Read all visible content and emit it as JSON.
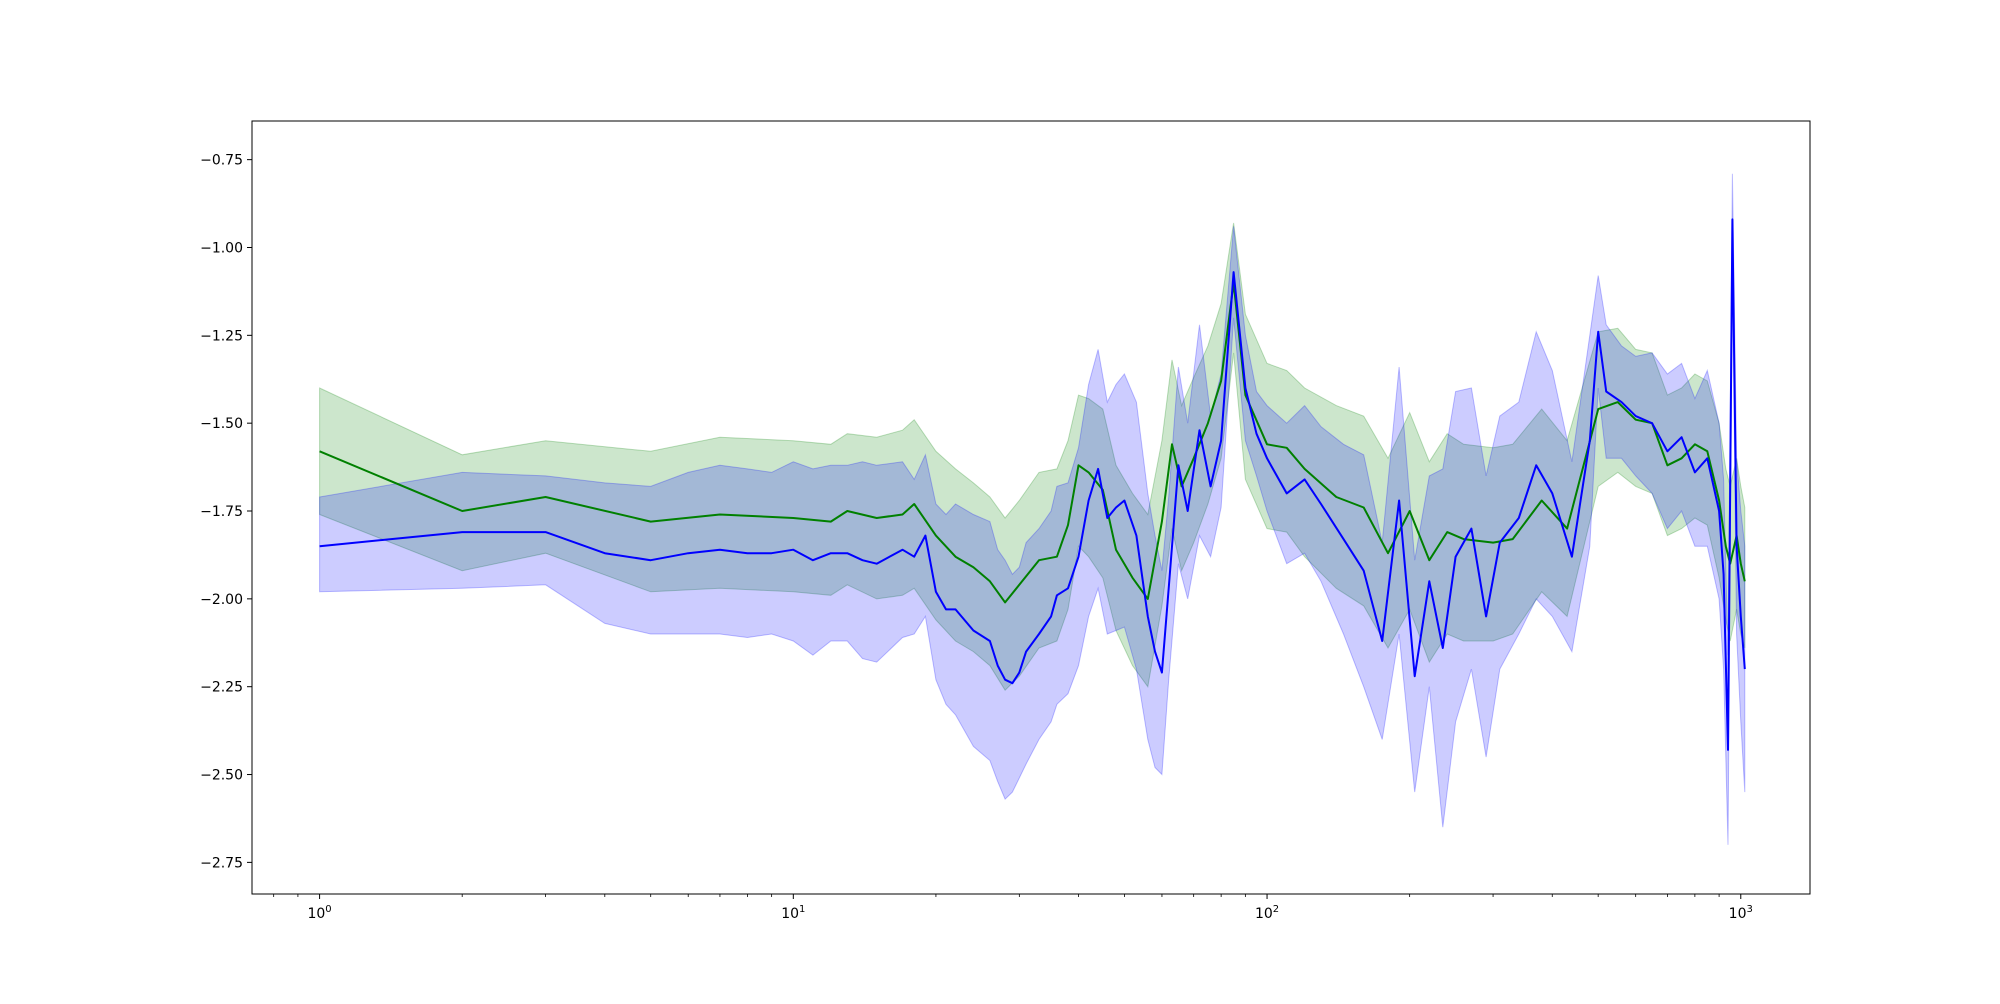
{
  "chart_data": {
    "type": "line",
    "title": "",
    "xlabel": "",
    "ylabel": "",
    "xscale": "log",
    "xlim": [
      0.72,
      1400
    ],
    "ylim": [
      -2.84,
      -0.64
    ],
    "grid": false,
    "x_tick_labels": [
      {
        "base": "10",
        "exp": "0",
        "value": 1
      },
      {
        "base": "10",
        "exp": "1",
        "value": 10
      },
      {
        "base": "10",
        "exp": "2",
        "value": 100
      },
      {
        "base": "10",
        "exp": "3",
        "value": 1000
      }
    ],
    "y_ticks": [
      -0.75,
      -1.0,
      -1.25,
      -1.5,
      -1.75,
      -2.0,
      -2.25,
      -2.5,
      -2.75
    ],
    "y_tick_labels": [
      "−0.75",
      "−1.00",
      "−1.25",
      "−1.50",
      "−1.75",
      "−2.00",
      "−2.25",
      "−2.50",
      "−2.75"
    ],
    "series": [
      {
        "color": "#008000",
        "band_color": "#008000",
        "band_opacity": 0.2,
        "x": [
          1,
          2,
          3,
          5,
          7,
          10,
          12,
          13,
          15,
          17,
          18,
          20,
          22,
          24,
          26,
          28,
          30,
          33,
          36,
          38,
          40,
          42,
          45,
          48,
          52,
          56,
          60,
          63,
          66,
          70,
          75,
          80,
          85,
          90,
          100,
          110,
          120,
          140,
          160,
          180,
          200,
          220,
          240,
          260,
          300,
          330,
          380,
          430,
          500,
          550,
          600,
          650,
          700,
          750,
          800,
          850,
          900,
          930,
          950,
          980,
          1000,
          1020
        ],
        "y": [
          -1.58,
          -1.75,
          -1.71,
          -1.78,
          -1.76,
          -1.77,
          -1.78,
          -1.75,
          -1.77,
          -1.76,
          -1.73,
          -1.82,
          -1.88,
          -1.91,
          -1.95,
          -2.01,
          -1.96,
          -1.89,
          -1.88,
          -1.79,
          -1.62,
          -1.64,
          -1.69,
          -1.86,
          -1.94,
          -2.0,
          -1.78,
          -1.56,
          -1.68,
          -1.6,
          -1.5,
          -1.38,
          -1.1,
          -1.42,
          -1.56,
          -1.57,
          -1.63,
          -1.71,
          -1.74,
          -1.87,
          -1.75,
          -1.89,
          -1.81,
          -1.83,
          -1.84,
          -1.83,
          -1.72,
          -1.8,
          -1.46,
          -1.44,
          -1.49,
          -1.5,
          -1.62,
          -1.6,
          -1.56,
          -1.58,
          -1.72,
          -1.85,
          -1.9,
          -1.82,
          -1.9,
          -1.95
        ],
        "lower": [
          -1.76,
          -1.92,
          -1.87,
          -1.98,
          -1.97,
          -1.98,
          -1.99,
          -1.96,
          -2.0,
          -1.99,
          -1.97,
          -2.06,
          -2.12,
          -2.15,
          -2.19,
          -2.26,
          -2.22,
          -2.14,
          -2.12,
          -2.03,
          -1.85,
          -1.88,
          -1.94,
          -2.09,
          -2.19,
          -2.25,
          -2.02,
          -1.8,
          -1.92,
          -1.84,
          -1.73,
          -1.6,
          -1.3,
          -1.66,
          -1.8,
          -1.81,
          -1.88,
          -1.97,
          -2.02,
          -2.14,
          -2.03,
          -2.18,
          -2.1,
          -2.12,
          -2.12,
          -2.1,
          -1.98,
          -2.05,
          -1.68,
          -1.64,
          -1.68,
          -1.7,
          -1.82,
          -1.8,
          -1.77,
          -1.79,
          -1.94,
          -2.06,
          -2.12,
          -2.03,
          -2.1,
          -2.14
        ],
        "upper": [
          -1.4,
          -1.59,
          -1.55,
          -1.58,
          -1.54,
          -1.55,
          -1.56,
          -1.53,
          -1.54,
          -1.52,
          -1.49,
          -1.58,
          -1.63,
          -1.67,
          -1.71,
          -1.77,
          -1.72,
          -1.64,
          -1.63,
          -1.55,
          -1.42,
          -1.43,
          -1.46,
          -1.62,
          -1.7,
          -1.76,
          -1.55,
          -1.32,
          -1.45,
          -1.37,
          -1.28,
          -1.16,
          -0.93,
          -1.19,
          -1.33,
          -1.35,
          -1.4,
          -1.45,
          -1.48,
          -1.6,
          -1.47,
          -1.61,
          -1.53,
          -1.56,
          -1.57,
          -1.56,
          -1.46,
          -1.55,
          -1.24,
          -1.23,
          -1.29,
          -1.3,
          -1.42,
          -1.4,
          -1.36,
          -1.38,
          -1.5,
          -1.63,
          -1.68,
          -1.6,
          -1.68,
          -1.74
        ]
      },
      {
        "color": "#0000ff",
        "band_color": "#0000ff",
        "band_opacity": 0.2,
        "x": [
          1,
          2,
          3,
          4,
          5,
          6,
          7,
          8,
          9,
          10,
          11,
          12,
          13,
          14,
          15,
          17,
          18,
          19,
          20,
          21,
          22,
          24,
          26,
          27,
          28,
          29,
          30,
          31,
          33,
          35,
          36,
          38,
          40,
          42,
          44,
          46,
          48,
          50,
          53,
          56,
          58,
          60,
          62,
          65,
          68,
          72,
          76,
          80,
          85,
          90,
          95,
          100,
          110,
          120,
          130,
          145,
          160,
          175,
          190,
          205,
          220,
          235,
          250,
          270,
          290,
          310,
          340,
          370,
          400,
          440,
          480,
          500,
          520,
          560,
          600,
          650,
          700,
          750,
          800,
          850,
          900,
          920,
          940,
          960,
          980,
          1000,
          1020
        ],
        "y": [
          -1.85,
          -1.81,
          -1.81,
          -1.87,
          -1.89,
          -1.87,
          -1.86,
          -1.87,
          -1.87,
          -1.86,
          -1.89,
          -1.87,
          -1.87,
          -1.89,
          -1.9,
          -1.86,
          -1.88,
          -1.82,
          -1.98,
          -2.03,
          -2.03,
          -2.09,
          -2.12,
          -2.19,
          -2.23,
          -2.24,
          -2.21,
          -2.15,
          -2.1,
          -2.05,
          -1.99,
          -1.97,
          -1.88,
          -1.72,
          -1.63,
          -1.77,
          -1.74,
          -1.72,
          -1.82,
          -2.05,
          -2.15,
          -2.21,
          -1.97,
          -1.62,
          -1.75,
          -1.52,
          -1.68,
          -1.55,
          -1.07,
          -1.4,
          -1.53,
          -1.6,
          -1.7,
          -1.66,
          -1.73,
          -1.83,
          -1.92,
          -2.12,
          -1.72,
          -2.22,
          -1.95,
          -2.14,
          -1.88,
          -1.8,
          -2.05,
          -1.84,
          -1.77,
          -1.62,
          -1.7,
          -1.88,
          -1.55,
          -1.24,
          -1.41,
          -1.44,
          -1.48,
          -1.5,
          -1.58,
          -1.54,
          -1.64,
          -1.6,
          -1.75,
          -1.93,
          -2.43,
          -0.92,
          -1.85,
          -2.05,
          -2.2
        ],
        "lower": [
          -1.98,
          -1.97,
          -1.96,
          -2.07,
          -2.1,
          -2.1,
          -2.1,
          -2.11,
          -2.1,
          -2.12,
          -2.16,
          -2.12,
          -2.12,
          -2.17,
          -2.18,
          -2.11,
          -2.1,
          -2.05,
          -2.23,
          -2.3,
          -2.33,
          -2.42,
          -2.46,
          -2.52,
          -2.57,
          -2.55,
          -2.51,
          -2.47,
          -2.4,
          -2.35,
          -2.3,
          -2.27,
          -2.19,
          -2.05,
          -1.97,
          -2.1,
          -2.09,
          -2.08,
          -2.2,
          -2.4,
          -2.48,
          -2.5,
          -2.23,
          -1.9,
          -2.0,
          -1.82,
          -1.88,
          -1.74,
          -1.2,
          -1.55,
          -1.65,
          -1.75,
          -1.9,
          -1.87,
          -1.95,
          -2.1,
          -2.25,
          -2.4,
          -2.1,
          -2.55,
          -2.25,
          -2.65,
          -2.35,
          -2.2,
          -2.45,
          -2.2,
          -2.1,
          -2.0,
          -2.05,
          -2.15,
          -1.85,
          -1.4,
          -1.6,
          -1.6,
          -1.65,
          -1.7,
          -1.8,
          -1.75,
          -1.85,
          -1.85,
          -2.0,
          -2.2,
          -2.7,
          -1.05,
          -2.1,
          -2.35,
          -2.55
        ],
        "upper": [
          -1.71,
          -1.64,
          -1.65,
          -1.67,
          -1.68,
          -1.64,
          -1.62,
          -1.63,
          -1.64,
          -1.61,
          -1.63,
          -1.62,
          -1.62,
          -1.61,
          -1.62,
          -1.61,
          -1.66,
          -1.59,
          -1.73,
          -1.76,
          -1.73,
          -1.76,
          -1.78,
          -1.86,
          -1.89,
          -1.93,
          -1.91,
          -1.84,
          -1.8,
          -1.75,
          -1.68,
          -1.67,
          -1.57,
          -1.39,
          -1.29,
          -1.44,
          -1.39,
          -1.36,
          -1.44,
          -1.7,
          -1.82,
          -1.92,
          -1.71,
          -1.34,
          -1.5,
          -1.22,
          -1.48,
          -1.36,
          -0.94,
          -1.25,
          -1.41,
          -1.45,
          -1.5,
          -1.45,
          -1.51,
          -1.56,
          -1.59,
          -1.84,
          -1.34,
          -1.89,
          -1.65,
          -1.63,
          -1.41,
          -1.4,
          -1.65,
          -1.48,
          -1.44,
          -1.24,
          -1.35,
          -1.61,
          -1.25,
          -1.08,
          -1.22,
          -1.28,
          -1.31,
          -1.3,
          -1.36,
          -1.33,
          -1.43,
          -1.35,
          -1.5,
          -1.66,
          -2.16,
          -0.79,
          -1.6,
          -1.75,
          -1.85
        ]
      }
    ]
  }
}
